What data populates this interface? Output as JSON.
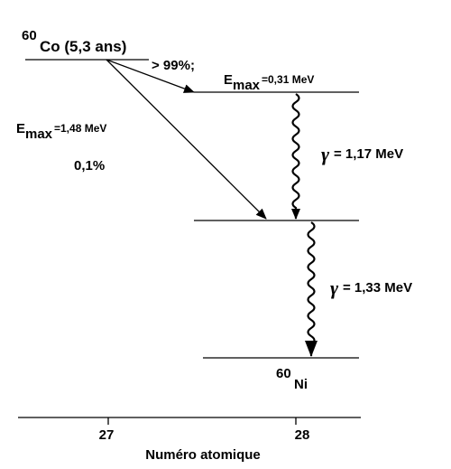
{
  "parent": {
    "mass": "60",
    "symbol": "Co (5,3 ans)"
  },
  "branches": [
    {
      "intensity": "> 99%;",
      "energy_symbol": "E",
      "energy_sub": "max",
      "energy": "=0,31 MeV"
    },
    {
      "energy_symbol": "E",
      "energy_sub": "max",
      "energy": "=1,48  MeV",
      "intensity": "0,1%"
    }
  ],
  "gammas": [
    {
      "symbol": "γ",
      "energy": "= 1,17 MeV"
    },
    {
      "symbol": "γ",
      "energy": "= 1,33 MeV"
    }
  ],
  "daughter": {
    "mass": "60",
    "symbol": "Ni"
  },
  "axis": {
    "ticks": [
      "27",
      "28"
    ],
    "label": "Numéro atomique"
  }
}
